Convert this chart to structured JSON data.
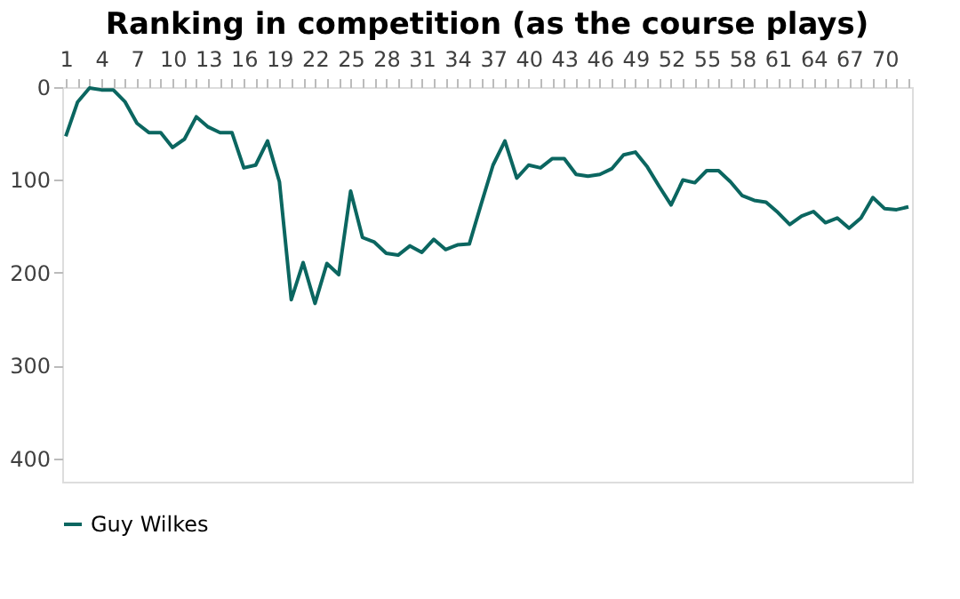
{
  "chart_data": {
    "type": "line",
    "title": "Ranking in competition (as the course plays)",
    "categories": [
      "1",
      null,
      null,
      "4",
      null,
      null,
      "7",
      null,
      null,
      "10",
      null,
      null,
      "13",
      null,
      null,
      "16",
      null,
      null,
      "19",
      null,
      null,
      "22",
      null,
      null,
      "25",
      null,
      null,
      "28",
      null,
      null,
      "31",
      null,
      null,
      "34",
      null,
      null,
      "37",
      null,
      null,
      "40",
      null,
      null,
      "43",
      null,
      null,
      "46",
      null,
      null,
      "49",
      null,
      null,
      "52",
      null,
      null,
      "55",
      null,
      null,
      "58",
      null,
      null,
      "61",
      null,
      null,
      "64",
      null,
      null,
      "67",
      null,
      null,
      "70",
      null,
      null
    ],
    "series": [
      {
        "name": "Guy Wilkes",
        "color": "#0b6660",
        "values": [
          53,
          16,
          1,
          3,
          3,
          16,
          39,
          49,
          49,
          65,
          56,
          32,
          43,
          49,
          49,
          87,
          84,
          58,
          102,
          229,
          189,
          233,
          190,
          202,
          112,
          162,
          167,
          179,
          181,
          171,
          178,
          164,
          175,
          170,
          169,
          126,
          84,
          58,
          98,
          84,
          87,
          77,
          77,
          94,
          96,
          94,
          88,
          73,
          70,
          86,
          107,
          127,
          100,
          103,
          90,
          90,
          102,
          117,
          122,
          124,
          135,
          148,
          139,
          134,
          146,
          141,
          152,
          141,
          119,
          131,
          132,
          129
        ]
      }
    ],
    "ylim": [
      425,
      0
    ],
    "yticks": [
      0,
      100,
      200,
      300,
      400
    ],
    "grid": false,
    "legend": "bottom"
  }
}
